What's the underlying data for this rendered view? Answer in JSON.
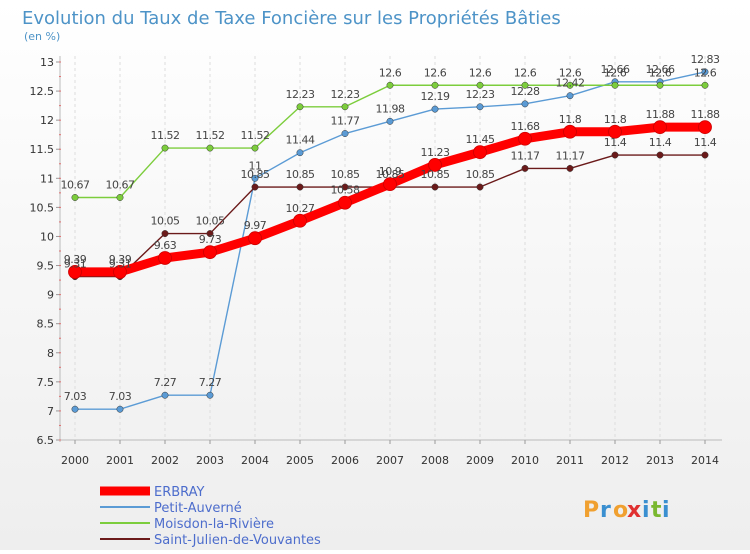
{
  "chart_data": {
    "type": "line",
    "title": "Evolution du Taux de Taxe Foncière sur les Propriétés Bâties",
    "subtitle": "(en %)",
    "x": [
      "2000",
      "2001",
      "2002",
      "2003",
      "2004",
      "2005",
      "2006",
      "2007",
      "2008",
      "2009",
      "2010",
      "2011",
      "2012",
      "2013",
      "2014"
    ],
    "ylim": [
      6.5,
      13
    ],
    "yticks": [
      "6.5",
      "7",
      "7.5",
      "8",
      "8.5",
      "9",
      "9.5",
      "10",
      "10.5",
      "11",
      "11.5",
      "12",
      "12.5",
      "13"
    ],
    "grid": "vertical dashed",
    "legend_position": "bottom",
    "series": [
      {
        "name": "ERBRAY",
        "color": "#ff0000",
        "values": [
          9.39,
          9.39,
          9.63,
          9.73,
          9.97,
          10.27,
          10.58,
          10.9,
          11.23,
          11.45,
          11.68,
          11.8,
          11.8,
          11.88,
          11.88
        ],
        "labels": [
          "9.39",
          "9.39",
          "9.63",
          "9.73",
          "9.97",
          "10.27",
          "10.58",
          "10.9",
          "11.23",
          "11.45",
          "11.68",
          "11.8",
          "11.8",
          "11.88",
          "11.88"
        ]
      },
      {
        "name": "Petit-Auverné",
        "color": "#5b9bd5",
        "values": [
          7.03,
          7.03,
          7.27,
          7.27,
          11.0,
          11.44,
          11.77,
          11.98,
          12.19,
          12.23,
          12.28,
          12.42,
          12.66,
          12.66,
          12.83
        ],
        "labels": [
          "7.03",
          "7.03",
          "7.27",
          "7.27",
          "11",
          "11.44",
          "11.77",
          "11.98",
          "12.19",
          "12.23",
          "12.28",
          "12.42",
          "12.66",
          "12.66",
          "12.83"
        ]
      },
      {
        "name": "Moisdon-la-Rivière",
        "color": "#7ccd3c",
        "values": [
          10.67,
          10.67,
          11.52,
          11.52,
          11.52,
          12.23,
          12.23,
          12.6,
          12.6,
          12.6,
          12.6,
          12.6,
          12.6,
          12.6,
          12.6
        ],
        "labels": [
          "10.67",
          "10.67",
          "11.52",
          "11.52",
          "11.52",
          "12.23",
          "12.23",
          "12.6",
          "12.6",
          "12.6",
          "12.6",
          "12.6",
          "12.6",
          "12.6",
          "12.6"
        ]
      },
      {
        "name": "Saint-Julien-de-Vouvantes",
        "color": "#6b1a1a",
        "values": [
          9.31,
          9.31,
          10.05,
          10.05,
          10.85,
          10.85,
          10.85,
          10.85,
          10.85,
          10.85,
          11.17,
          11.17,
          11.4,
          11.4,
          11.4
        ],
        "labels": [
          "9.31",
          "9.31",
          "10.05",
          "10.05",
          "10.85",
          "10.85",
          "10.85",
          "10.85",
          "10.85",
          "10.85",
          "11.17",
          "11.17",
          "11.4",
          "11.4",
          "11.4"
        ]
      }
    ],
    "logo": "Proxiti"
  }
}
